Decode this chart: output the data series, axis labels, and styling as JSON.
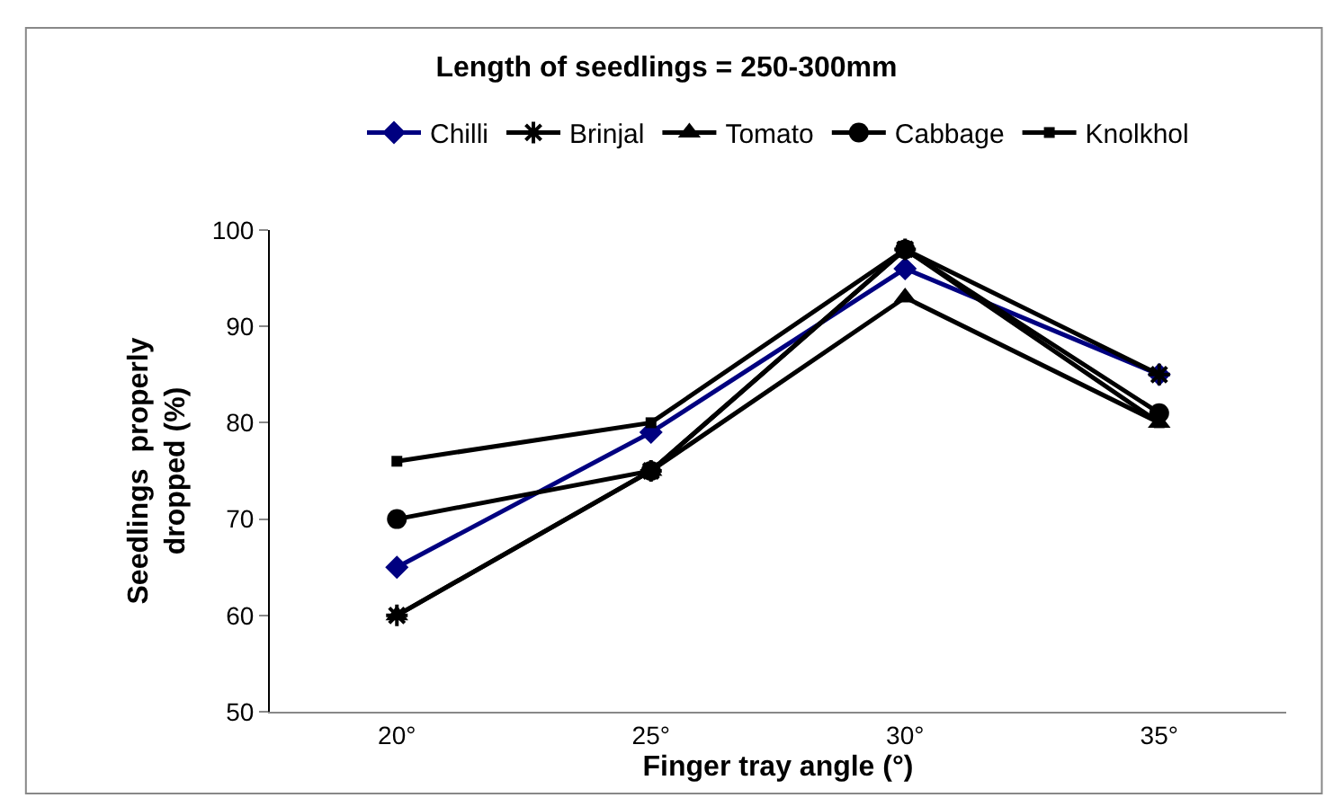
{
  "chart_data": {
    "type": "line",
    "title": "Length of seedlings = 250-300mm",
    "xlabel": "Finger tray angle (°)",
    "ylabel": "Seedlings  properly dropped (%)",
    "categories": [
      "20°",
      "25°",
      "30°",
      "35°"
    ],
    "series": [
      {
        "name": "Chilli",
        "color": "#000080",
        "marker": "diamond",
        "values": [
          65,
          79,
          96,
          85
        ]
      },
      {
        "name": "Brinjal",
        "color": "#000000",
        "marker": "cross",
        "values": [
          60,
          75,
          98,
          85
        ]
      },
      {
        "name": "Tomato",
        "color": "#000000",
        "marker": "triangle",
        "values": [
          60,
          75,
          93,
          80
        ]
      },
      {
        "name": "Cabbage",
        "color": "#000000",
        "marker": "circle",
        "values": [
          70,
          75,
          98,
          81
        ]
      },
      {
        "name": "Knolkhol",
        "color": "#000000",
        "marker": "square",
        "values": [
          76,
          80,
          98,
          80
        ]
      }
    ],
    "ylim": [
      50,
      100
    ],
    "yticks": [
      50,
      60,
      70,
      80,
      90,
      100
    ],
    "grid": false,
    "legend": "top",
    "line_style": "solid"
  }
}
